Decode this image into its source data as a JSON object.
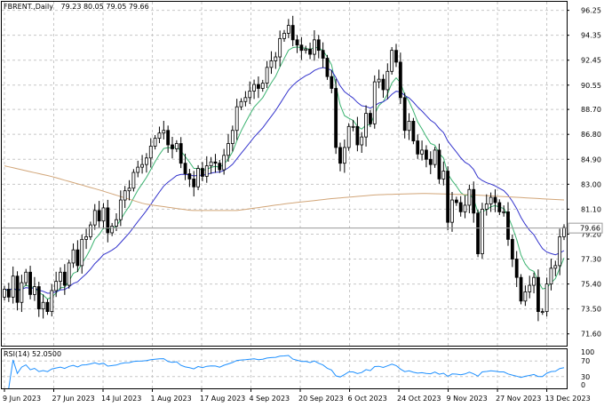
{
  "header": {
    "symbol": "FBRENT.,Daily",
    "ohlc": "79.23 80.05 79.05 79.66"
  },
  "rsi": {
    "label": "RSI(14) 52.0500",
    "levels": [
      "70",
      "30"
    ],
    "ticks": [
      "100",
      "70",
      "30",
      "0"
    ],
    "color": "#1e90ff"
  },
  "colors": {
    "bull": "#ffffff",
    "bear": "#000000",
    "ma_fast": "#3cb371",
    "ma_mid": "#3333cc",
    "ma_slow": "#d2a679",
    "current_price_line": "#9a9a9a"
  },
  "chart_data": {
    "type": "candlestick",
    "title": "FBRENT.,Daily",
    "x_tick_labels": [
      "9 Jun 2023",
      "27 Jun 2023",
      "14 Jul 2023",
      "1 Aug 2023",
      "17 Aug 2023",
      "4 Sep 2023",
      "20 Sep 2023",
      "6 Oct 2023",
      "24 Oct 2023",
      "9 Nov 2023",
      "27 Nov 2023",
      "13 Dec 2023"
    ],
    "y_tick_labels": [
      "96.25",
      "94.35",
      "92.45",
      "90.55",
      "88.70",
      "86.80",
      "84.90",
      "83.00",
      "81.10",
      "79.20",
      "77.30",
      "75.40",
      "73.50",
      "71.60"
    ],
    "ylim": [
      70.7,
      96.9
    ],
    "current_price": "79.66",
    "close": [
      75.0,
      74.4,
      76.0,
      74.0,
      75.5,
      76.3,
      74.6,
      75.2,
      73.5,
      74.0,
      73.3,
      74.9,
      75.6,
      76.3,
      75.3,
      77.0,
      78.0,
      76.8,
      78.8,
      79.0,
      79.9,
      81.0,
      80.2,
      81.2,
      79.3,
      79.8,
      80.3,
      81.8,
      82.5,
      82.7,
      83.9,
      84.3,
      84.5,
      85.0,
      85.9,
      86.5,
      86.9,
      87.1,
      86.0,
      85.7,
      86.1,
      84.6,
      83.8,
      83.4,
      82.8,
      84.2,
      83.6,
      84.4,
      84.7,
      84.6,
      84.1,
      85.2,
      86.1,
      87.1,
      88.9,
      89.3,
      89.6,
      90.1,
      90.6,
      90.3,
      90.7,
      91.9,
      92.4,
      92.7,
      94.1,
      94.5,
      95.1,
      94.0,
      93.6,
      93.2,
      93.3,
      92.9,
      94.0,
      93.2,
      92.6,
      91.2,
      90.3,
      85.8,
      84.6,
      85.8,
      87.4,
      87.4,
      86.0,
      86.6,
      88.4,
      87.6,
      90.8,
      91.0,
      90.2,
      91.6,
      93.2,
      92.3,
      89.6,
      87.1,
      87.8,
      86.3,
      85.3,
      85.6,
      84.9,
      84.5,
      85.6,
      83.4,
      84.0,
      80.1,
      81.8,
      81.6,
      80.9,
      81.4,
      82.6,
      80.8,
      77.7,
      81.1,
      81.5,
      82.0,
      81.6,
      80.9,
      80.9,
      78.8,
      77.3,
      75.9,
      74.1,
      74.8,
      75.3,
      75.9,
      73.3,
      73.3,
      75.4,
      76.6,
      76.8,
      79.0,
      79.7
    ]
  }
}
